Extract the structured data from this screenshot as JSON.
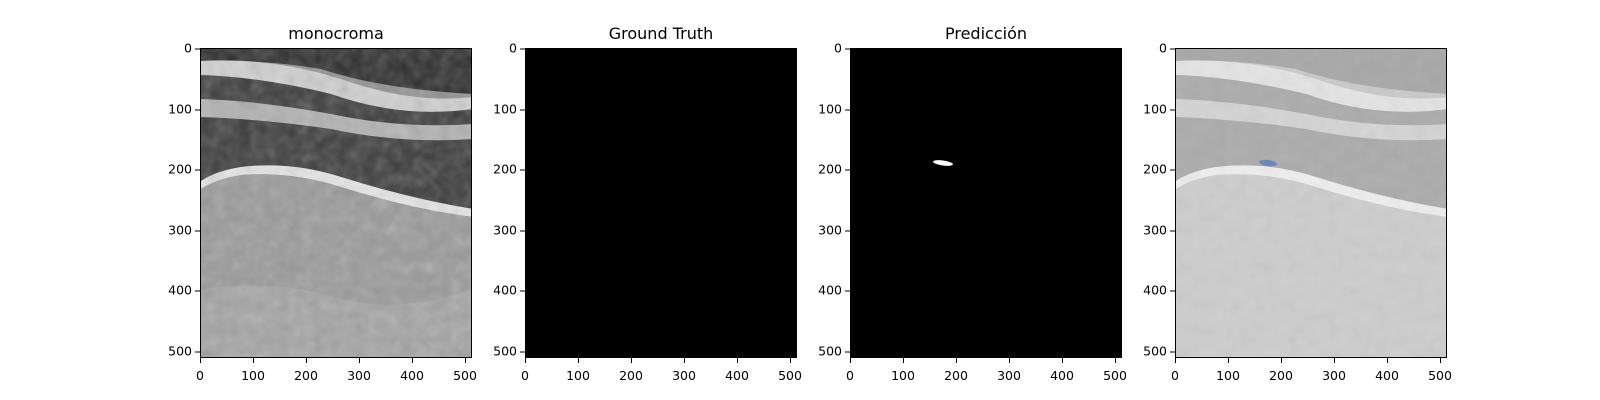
{
  "figure": {
    "panels": [
      {
        "title": "monocroma",
        "kind": "ultrasound-grayscale"
      },
      {
        "title": "Ground Truth",
        "kind": "empty-mask"
      },
      {
        "title": "Predicción",
        "kind": "prediction-mask"
      },
      {
        "title": "",
        "kind": "overlay"
      }
    ],
    "axis": {
      "x_ticks": [
        "0",
        "100",
        "200",
        "300",
        "400",
        "500"
      ],
      "y_ticks": [
        "0",
        "100",
        "200",
        "300",
        "400",
        "500"
      ],
      "x_range": [
        0,
        512
      ],
      "y_range": [
        0,
        512
      ]
    },
    "colors": {
      "mask_background": "#000000",
      "mask_foreground": "#ffffff",
      "overlay_region": "#6f86b8"
    }
  }
}
